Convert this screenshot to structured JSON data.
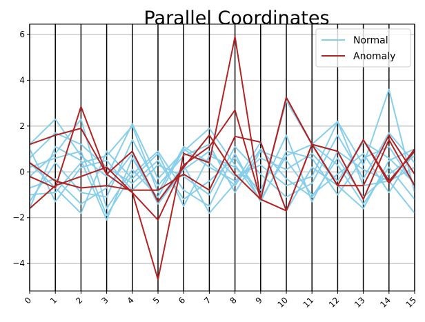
{
  "chart_data": {
    "type": "line",
    "chart_kind": "parallel-coordinates",
    "title": "Parallel Coordinates",
    "xlabel": "",
    "ylabel": "",
    "x": [
      0,
      1,
      2,
      3,
      4,
      5,
      6,
      7,
      8,
      9,
      10,
      11,
      12,
      13,
      14,
      15
    ],
    "x_tick_labels": [
      "0",
      "1",
      "2",
      "3",
      "4",
      "5",
      "6",
      "7",
      "8",
      "9",
      "10",
      "11",
      "12",
      "13",
      "14",
      "15"
    ],
    "xlim": [
      0,
      15
    ],
    "ylim": [
      -5.2,
      6.45
    ],
    "y_ticks": [
      -4,
      -2,
      0,
      2,
      4,
      6
    ],
    "y_tick_labels": [
      "−4",
      "−2",
      "0",
      "2",
      "4",
      "6"
    ],
    "grid": "horizontal",
    "legend": {
      "placement": "top-right",
      "entries": [
        "Normal",
        "Anomaly"
      ]
    },
    "colors": {
      "Normal": "#87ceeb",
      "Anomaly": "#b22222"
    },
    "series": [
      {
        "name": "Normal",
        "lines": [
          [
            1.2,
            2.3,
            0.7,
            -0.2,
            2.1,
            -0.3,
            0.9,
            1.9,
            0.3,
            -1.2,
            0.7,
            1.2,
            2.2,
            0.3,
            3.6,
            -0.9
          ],
          [
            -1.6,
            1.1,
            0.5,
            -2.1,
            0.6,
            -1.3,
            0.3,
            -1.8,
            -0.5,
            1.3,
            -1.7,
            0.2,
            -0.6,
            -1.6,
            0.5,
            1.0
          ],
          [
            0.4,
            -0.7,
            -1.8,
            0.9,
            -0.3,
            0.8,
            -1.5,
            0.7,
            0.2,
            -0.8,
            1.6,
            -1.3,
            0.9,
            0.1,
            -0.4,
            -1.8
          ],
          [
            -0.2,
            0.8,
            2.3,
            -1.6,
            0.1,
            -1.1,
            1.0,
            0.2,
            -0.4,
            0.6,
            0.1,
            0.8,
            -0.4,
            1.3,
            0.6,
            -0.5
          ],
          [
            1.0,
            -1.3,
            0.2,
            0.5,
            -0.8,
            0.3,
            -0.2,
            -1.0,
            1.1,
            -0.1,
            -1.1,
            -0.5,
            1.6,
            -0.3,
            1.7,
            0.4
          ],
          [
            -1.3,
            0.4,
            -0.9,
            -1.1,
            1.4,
            -0.6,
            0.7,
            1.2,
            -0.9,
            0.9,
            0.5,
            -1.0,
            -0.1,
            0.8,
            -0.9,
            0.9
          ],
          [
            0.6,
            1.7,
            1.2,
            0.2,
            -0.5,
            0.5,
            -1.2,
            -0.4,
            0.6,
            -1.0,
            3.1,
            1.2,
            0.3,
            -1.4,
            0.2,
            -1.2
          ],
          [
            -0.7,
            -0.3,
            -1.4,
            -0.7,
            0.8,
            -1.4,
            0.1,
            0.9,
            -0.2,
            0.3,
            -0.6,
            -0.2,
            2.2,
            -0.6,
            -0.4,
            0.2
          ],
          [
            0.2,
            0.6,
            0.9,
            -1.9,
            -0.1,
            0.9,
            -0.8,
            -1.5,
            0.8,
            -1.3,
            0.9,
            0.6,
            -1.0,
            0.6,
            1.1,
            -0.6
          ],
          [
            -1.0,
            -0.9,
            0.4,
            0.7,
            2.0,
            -0.9,
            1.1,
            0.4,
            -0.6,
            1.0,
            -0.3,
            -1.1,
            0.6,
            -1.1,
            -0.1,
            0.7
          ]
        ]
      },
      {
        "name": "Anomaly",
        "lines": [
          [
            1.2,
            1.6,
            1.9,
            -0.1,
            0.9,
            -1.3,
            0.2,
            1.6,
            -0.1,
            -1.2,
            3.25,
            1.2,
            0.9,
            -1.2,
            1.4,
            -0.6
          ],
          [
            -0.2,
            -0.7,
            2.85,
            -0.1,
            -0.9,
            -4.7,
            0.8,
            0.4,
            5.9,
            -1.2,
            -1.7,
            1.2,
            -0.6,
            1.4,
            -0.5,
            1.0
          ],
          [
            -1.6,
            -0.6,
            -0.2,
            0.2,
            -0.9,
            -2.1,
            0.3,
            1.1,
            2.7,
            -1.2,
            3.25,
            1.2,
            -0.6,
            1.4,
            -0.4,
            0.9
          ],
          [
            0.4,
            -0.4,
            -0.7,
            -0.6,
            -0.8,
            -0.8,
            -0.1,
            -0.8,
            1.55,
            1.3,
            -1.7,
            1.2,
            -0.6,
            -0.6,
            1.6,
            -0.1
          ]
        ]
      }
    ]
  }
}
